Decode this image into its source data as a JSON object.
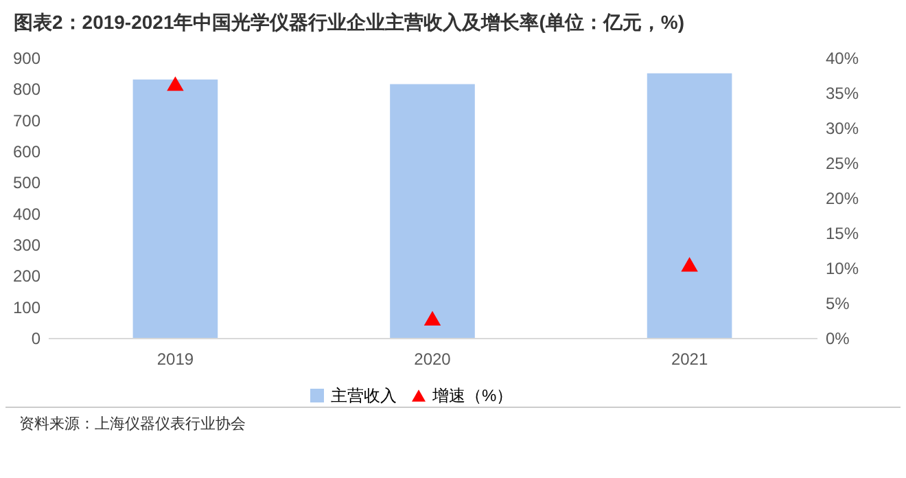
{
  "chart_data": {
    "type": "bar",
    "title": "图表2：2019-2021年中国光学仪器行业企业主营收入及增长率(单位：亿元，%)",
    "categories": [
      "2019",
      "2020",
      "2021"
    ],
    "series": [
      {
        "name": "主营收入",
        "color": "#a9c8f0",
        "values": [
          830,
          815,
          850
        ]
      },
      {
        "name": "增速（%）",
        "type": "scatter",
        "axis": "y2",
        "color": "#ff0000",
        "marker": "triangle",
        "values": [
          36.3,
          2.8,
          10.5
        ]
      }
    ],
    "ylim": [
      0,
      900
    ],
    "yticks": [
      0,
      100,
      200,
      300,
      400,
      500,
      600,
      700,
      800,
      900
    ],
    "y2lim": [
      0,
      40
    ],
    "y2ticks": [
      {
        "value": 0,
        "label": "0%"
      },
      {
        "value": 5,
        "label": "5%"
      },
      {
        "value": 10,
        "label": "10%"
      },
      {
        "value": 15,
        "label": "15%"
      },
      {
        "value": 20,
        "label": "20%"
      },
      {
        "value": 25,
        "label": "25%"
      },
      {
        "value": 30,
        "label": "30%"
      },
      {
        "value": 35,
        "label": "35%"
      },
      {
        "value": 40,
        "label": "40%"
      }
    ],
    "legend": "bottom",
    "annotations": [
      "资料来源：上海仪器仪表行业协会"
    ]
  }
}
